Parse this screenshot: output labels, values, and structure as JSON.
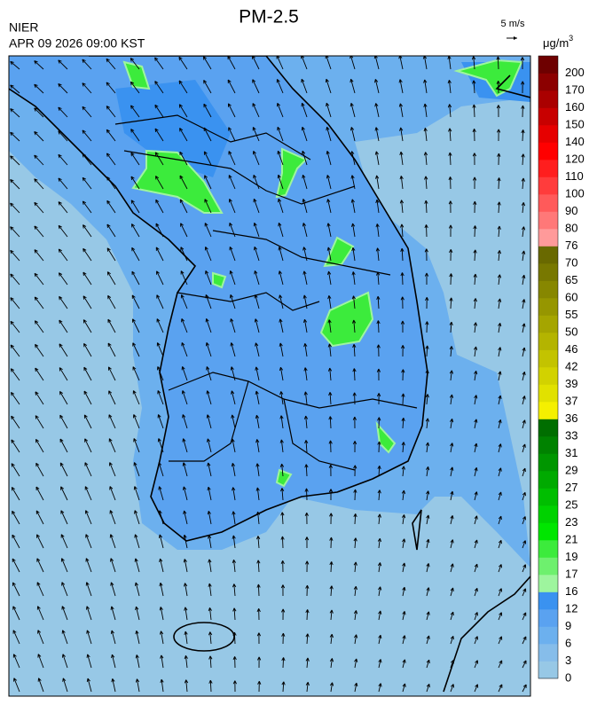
{
  "header": {
    "title": "PM-2.5",
    "agency": "NIER",
    "timestamp": "APR 09 2026 09:00 KST",
    "wind_reference": "5 m/s"
  },
  "colorbar": {
    "unit": "μg/m",
    "unit_superscript": "3",
    "levels": [
      0,
      3,
      6,
      9,
      12,
      16,
      17,
      19,
      21,
      23,
      25,
      27,
      29,
      31,
      33,
      36,
      37,
      39,
      42,
      46,
      50,
      55,
      60,
      65,
      70,
      76,
      80,
      90,
      100,
      110,
      120,
      140,
      150,
      160,
      170,
      200
    ],
    "colors": [
      "#97c8e6",
      "#86bdea",
      "#6cb0ee",
      "#5aa2f0",
      "#3a92f0",
      "#9ef59e",
      "#6ef06e",
      "#3ceb3c",
      "#00e600",
      "#00d200",
      "#00be00",
      "#00aa00",
      "#009600",
      "#008200",
      "#006e00",
      "#f5f000",
      "#e1e100",
      "#d2d200",
      "#c3c300",
      "#b4b400",
      "#a5a500",
      "#969600",
      "#878700",
      "#787800",
      "#696900",
      "#ff9a9a",
      "#ff7878",
      "#ff5a5a",
      "#ff3c3c",
      "#ff1e1e",
      "#ff0000",
      "#e60000",
      "#c80000",
      "#aa0000",
      "#8c0000",
      "#6e0000"
    ]
  }
}
